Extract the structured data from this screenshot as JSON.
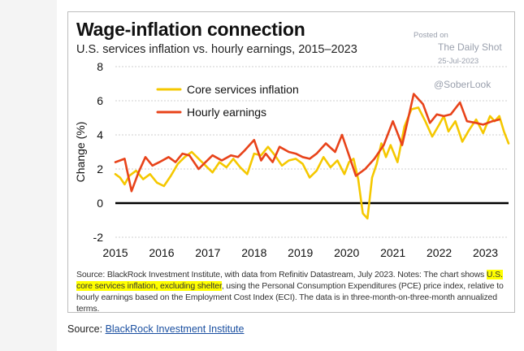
{
  "chart_data": {
    "type": "line",
    "title": "Wage-inflation connection",
    "subtitle": "U.S. services inflation vs. hourly earnings, 2015–2023",
    "ylabel": "Change (%)",
    "xlabel": "",
    "ylim": [
      -2,
      8
    ],
    "xlim": [
      2015,
      2023.5
    ],
    "yticks": [
      -2,
      0,
      2,
      4,
      6,
      8
    ],
    "xticks": [
      2015,
      2016,
      2017,
      2018,
      2019,
      2020,
      2021,
      2022,
      2023
    ],
    "legend_position": "top-left",
    "series": [
      {
        "name": "Core services inflation",
        "color": "#f5c800",
        "x": [
          2015,
          2015.1,
          2015.2,
          2015.3,
          2015.45,
          2015.6,
          2015.75,
          2015.9,
          2016.05,
          2016.2,
          2016.35,
          2016.5,
          2016.65,
          2016.8,
          2016.95,
          2017.1,
          2017.25,
          2017.4,
          2017.55,
          2017.7,
          2017.85,
          2018.0,
          2018.15,
          2018.3,
          2018.45,
          2018.6,
          2018.75,
          2018.9,
          2019.05,
          2019.2,
          2019.35,
          2019.5,
          2019.65,
          2019.8,
          2019.95,
          2020.05,
          2020.15,
          2020.25,
          2020.35,
          2020.45,
          2020.55,
          2020.65,
          2020.75,
          2020.85,
          2020.95,
          2021.1,
          2021.25,
          2021.4,
          2021.55,
          2021.7,
          2021.85,
          2022.0,
          2022.1,
          2022.2,
          2022.35,
          2022.5,
          2022.65,
          2022.8,
          2022.95,
          2023.1,
          2023.2,
          2023.3,
          2023.4,
          2023.5
        ],
        "values": [
          1.7,
          1.5,
          1.1,
          1.6,
          1.9,
          1.4,
          1.7,
          1.2,
          1.0,
          1.6,
          2.3,
          2.7,
          3.0,
          2.6,
          2.2,
          1.8,
          2.4,
          2.1,
          2.6,
          2.1,
          1.7,
          2.9,
          2.8,
          3.3,
          2.8,
          2.2,
          2.5,
          2.6,
          2.3,
          1.5,
          1.9,
          2.7,
          2.1,
          2.5,
          1.7,
          2.4,
          2.6,
          1.4,
          -0.6,
          -0.9,
          1.5,
          2.3,
          3.5,
          2.7,
          3.4,
          2.4,
          4.5,
          5.5,
          5.6,
          4.8,
          3.9,
          4.6,
          5.1,
          4.2,
          4.8,
          3.6,
          4.3,
          4.9,
          4.1,
          5.1,
          4.8,
          5.1,
          4.2,
          3.5
        ]
      },
      {
        "name": "Hourly earnings",
        "color": "#e8431a",
        "x": [
          2015,
          2015.2,
          2015.35,
          2015.5,
          2015.65,
          2015.8,
          2015.95,
          2016.15,
          2016.3,
          2016.45,
          2016.6,
          2016.8,
          2016.95,
          2017.1,
          2017.3,
          2017.5,
          2017.65,
          2017.8,
          2018.0,
          2018.15,
          2018.25,
          2018.4,
          2018.55,
          2018.75,
          2018.9,
          2019.05,
          2019.2,
          2019.35,
          2019.55,
          2019.75,
          2019.9,
          2020.05,
          2020.2,
          2020.4,
          2020.6,
          2020.8,
          2021.0,
          2021.2,
          2021.45,
          2021.65,
          2021.8,
          2021.95,
          2022.1,
          2022.25,
          2022.45,
          2022.6,
          2022.8,
          2022.95,
          2023.15,
          2023.3
        ],
        "values": [
          2.4,
          2.6,
          0.7,
          1.8,
          2.7,
          2.2,
          2.4,
          2.7,
          2.4,
          2.9,
          2.8,
          2.0,
          2.4,
          2.8,
          2.5,
          2.8,
          2.7,
          3.1,
          3.7,
          2.5,
          2.9,
          2.4,
          3.3,
          3.0,
          2.9,
          2.7,
          2.6,
          2.9,
          3.5,
          3.0,
          4.0,
          2.8,
          1.6,
          2.0,
          2.6,
          3.4,
          4.8,
          3.4,
          6.4,
          5.8,
          4.7,
          5.2,
          5.1,
          5.2,
          5.9,
          4.8,
          4.7,
          4.6,
          4.8,
          4.9
        ]
      }
    ]
  },
  "watermark": {
    "posted": "Posted on",
    "outlet": "The Daily Shot",
    "date": "25-Jul-2023",
    "handle": "@SoberLook"
  },
  "notes": {
    "part1": "Source: BlackRock Investment Institute, with data from Refinitiv Datastream, July 2023. Notes: The chart shows ",
    "highlight": "U.S. core services inflation, excluding shelter",
    "part2": ", using the Personal Consumption Expenditures (PCE) price index, relative to hourly earnings based on the Employment Cost Index (ECI). The data is in three-month-on-three-month annualized terms."
  },
  "source": {
    "label": "Source: ",
    "link_text": "BlackRock Investment Institute"
  }
}
